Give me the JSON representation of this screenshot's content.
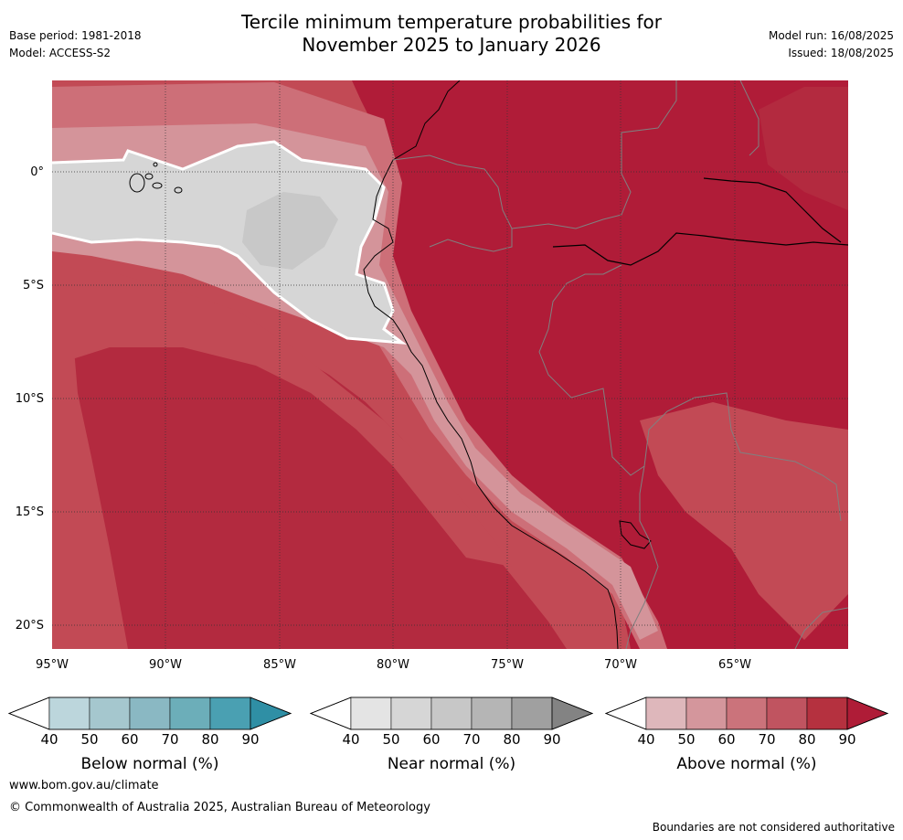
{
  "header": {
    "title_line1": "Tercile minimum temperature probabilities for",
    "title_line2": "November 2025 to January 2026",
    "base_period": "Base period: 1981-2018",
    "model": "Model: ACCESS-S2",
    "model_run": "Model run: 16/08/2025",
    "issued": "Issued: 18/08/2025"
  },
  "map": {
    "lat_labels": [
      "0°",
      "5°S",
      "10°S",
      "15°S",
      "20°S"
    ],
    "lon_labels": [
      "95°W",
      "90°W",
      "85°W",
      "80°W",
      "75°W",
      "70°W",
      "65°W"
    ],
    "colors": {
      "ocean_above_70": "#c24a55",
      "above_80": "#b32a3f",
      "above_90": "#b01c38",
      "above_60": "#cd6f78",
      "above_50": "#d4949a",
      "near_normal": "#d6d6d6",
      "coastline": "#000000",
      "borders": "#808080"
    }
  },
  "legends": [
    {
      "name": "Below normal (%)",
      "ticks": [
        "40",
        "50",
        "60",
        "70",
        "80",
        "90"
      ],
      "colors": [
        "#ffffff",
        "#bcd6dc",
        "#a5c7ce",
        "#8ab8c3",
        "#6caeb9",
        "#4aa0b2",
        "#2f8fa5"
      ]
    },
    {
      "name": "Near normal (%)",
      "ticks": [
        "40",
        "50",
        "60",
        "70",
        "80",
        "90"
      ],
      "colors": [
        "#ffffff",
        "#e4e4e4",
        "#d6d6d6",
        "#c7c7c7",
        "#b5b5b5",
        "#a0a0a0",
        "#838383"
      ]
    },
    {
      "name": "Above normal (%)",
      "ticks": [
        "40",
        "50",
        "60",
        "70",
        "80",
        "90"
      ],
      "colors": [
        "#ffffff",
        "#deb7bb",
        "#d4969c",
        "#cb737b",
        "#c05460",
        "#b5313f",
        "#af1c37"
      ]
    }
  ],
  "footer": {
    "url": "www.bom.gov.au/climate",
    "copyright": "© Commonwealth of Australia 2025, Australian Bureau of Meteorology",
    "disclaimer": "Boundaries are not considered authoritative"
  }
}
